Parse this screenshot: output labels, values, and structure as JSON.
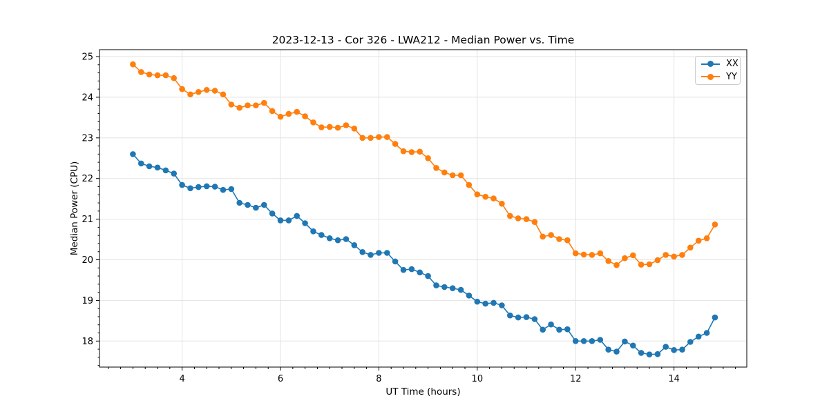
{
  "chart_data": {
    "type": "line",
    "title": "2023-12-13 - Cor 326 - LWA212 - Median Power vs. Time",
    "xlabel": "UT Time (hours)",
    "ylabel": "Median Power (CPU)",
    "xlim": [
      2.32,
      15.48
    ],
    "ylim": [
      17.36,
      25.17
    ],
    "xticks": [
      4,
      6,
      8,
      10,
      12,
      14
    ],
    "yticks": [
      18,
      19,
      20,
      21,
      22,
      23,
      24,
      25
    ],
    "minor_xtick_step": 0.25,
    "minor_ytick_step": 0.2,
    "grid": true,
    "grid_color": "#e3e3e3",
    "legend_position": "upper right",
    "marker": "circle",
    "x": [
      3.0,
      3.167,
      3.333,
      3.5,
      3.667,
      3.833,
      4.0,
      4.167,
      4.333,
      4.5,
      4.667,
      4.833,
      5.0,
      5.167,
      5.333,
      5.5,
      5.667,
      5.833,
      6.0,
      6.167,
      6.333,
      6.5,
      6.667,
      6.833,
      7.0,
      7.167,
      7.333,
      7.5,
      7.667,
      7.833,
      8.0,
      8.167,
      8.333,
      8.5,
      8.667,
      8.833,
      9.0,
      9.167,
      9.333,
      9.5,
      9.667,
      9.833,
      10.0,
      10.167,
      10.333,
      10.5,
      10.667,
      10.833,
      11.0,
      11.167,
      11.333,
      11.5,
      11.667,
      11.833,
      12.0,
      12.167,
      12.333,
      12.5,
      12.667,
      12.833,
      13.0,
      13.167,
      13.333,
      13.5,
      13.667,
      13.833,
      14.0,
      14.167,
      14.333,
      14.5,
      14.667,
      14.833
    ],
    "series": [
      {
        "name": "XX",
        "color": "#1f77b4",
        "values": [
          22.6,
          22.37,
          22.3,
          22.27,
          22.2,
          22.12,
          21.84,
          21.76,
          21.79,
          21.81,
          21.8,
          21.72,
          21.74,
          21.4,
          21.35,
          21.28,
          21.35,
          21.14,
          20.97,
          20.97,
          21.08,
          20.9,
          20.7,
          20.61,
          20.53,
          20.48,
          20.51,
          20.36,
          20.19,
          20.12,
          20.17,
          20.17,
          19.96,
          19.75,
          19.77,
          19.69,
          19.6,
          19.37,
          19.33,
          19.3,
          19.26,
          19.12,
          18.97,
          18.92,
          18.94,
          18.88,
          18.63,
          18.58,
          18.59,
          18.54,
          18.28,
          18.41,
          18.28,
          18.29,
          18.0,
          18.0,
          18.0,
          18.03,
          17.79,
          17.74,
          17.99,
          17.89,
          17.71,
          17.67,
          17.68,
          17.86,
          17.78,
          17.79,
          17.98,
          18.11,
          18.2,
          18.58
        ]
      },
      {
        "name": "YY",
        "color": "#ff7f0e",
        "values": [
          24.81,
          24.62,
          24.56,
          24.54,
          24.54,
          24.47,
          24.2,
          24.07,
          24.13,
          24.18,
          24.16,
          24.07,
          23.82,
          23.74,
          23.8,
          23.8,
          23.86,
          23.66,
          23.52,
          23.59,
          23.64,
          23.53,
          23.38,
          23.26,
          23.27,
          23.25,
          23.31,
          23.23,
          23.0,
          23.0,
          23.02,
          23.02,
          22.85,
          22.67,
          22.65,
          22.66,
          22.5,
          22.26,
          22.15,
          22.08,
          22.08,
          21.84,
          21.61,
          21.55,
          21.51,
          21.38,
          21.08,
          21.02,
          21.0,
          20.93,
          20.57,
          20.61,
          20.51,
          20.48,
          20.16,
          20.13,
          20.12,
          20.16,
          19.97,
          19.87,
          20.04,
          20.11,
          19.88,
          19.89,
          19.99,
          20.12,
          20.08,
          20.12,
          20.3,
          20.47,
          20.53,
          20.87
        ]
      }
    ]
  }
}
